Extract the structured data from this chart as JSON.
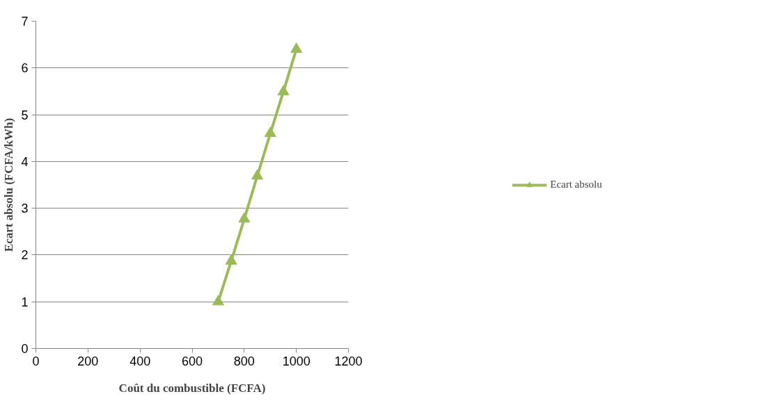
{
  "chart_data": {
    "type": "line",
    "xlabel": "Coût du combustible (FCFA)",
    "ylabel": "Ecart absolu (FCFA/kWh)",
    "x": [
      700,
      750,
      800,
      850,
      900,
      950,
      1000
    ],
    "series": [
      {
        "name": "Ecart absolu",
        "color": "#9bbb59",
        "values": [
          1.0,
          1.87,
          2.77,
          3.69,
          4.6,
          5.49,
          6.4
        ]
      }
    ],
    "xlim": [
      0,
      1200
    ],
    "xticks": [
      0,
      200,
      400,
      600,
      800,
      1000,
      1200
    ],
    "ylim": [
      0,
      7
    ],
    "yticks": [
      0,
      1,
      2,
      3,
      4,
      5,
      6,
      7
    ],
    "grid": "y",
    "legend": "right",
    "marker": "triangle",
    "line_style": "solid"
  }
}
